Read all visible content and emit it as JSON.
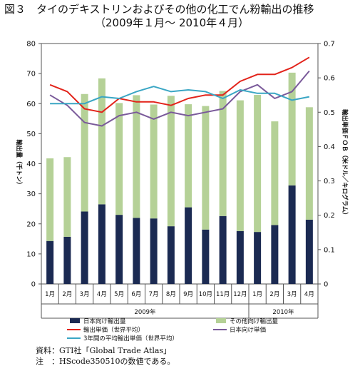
{
  "title": {
    "line1": "図３　タイのデキストリンおよびその他の化工でん粉輸出の推移",
    "line2": "（2009年１月～ 2010年４月）"
  },
  "notes": {
    "source": "資料：GTI社「Global Trade Atlas」",
    "note": "注　：HScode350510の数値である。"
  },
  "chart_data": {
    "type": "bar",
    "categories": [
      "1月",
      "2月",
      "3月",
      "4月",
      "5月",
      "6月",
      "7月",
      "8月",
      "9月",
      "10月",
      "11月",
      "12月",
      "1月",
      "2月",
      "3月",
      "4月"
    ],
    "year_groups": [
      {
        "label": "2009年",
        "from": 0,
        "to": 11
      },
      {
        "label": "2010年",
        "from": 12,
        "to": 15
      }
    ],
    "ylabel_left": "輸出量（千トン）",
    "ylabel_right": "輸出単価ＦＯＢ（米ドル／キログラム）",
    "ylim_left": [
      0,
      80
    ],
    "ylim_right": [
      0,
      0.7
    ],
    "left_ticks": [
      0,
      10,
      20,
      30,
      40,
      50,
      60,
      70,
      80
    ],
    "right_ticks": [
      "0",
      "0.1",
      "0.2",
      "0.3",
      "0.4",
      "0.5",
      "0.6",
      "0.7"
    ],
    "stacked_series": [
      {
        "name": "日本向け輸出量",
        "color": "#1b2a52",
        "values": [
          14.3,
          15.7,
          24.1,
          26.5,
          23.0,
          22.0,
          21.8,
          19.2,
          25.5,
          18.1,
          22.6,
          17.6,
          17.3,
          19.6,
          32.8,
          21.4
        ]
      },
      {
        "name": "その他向け輸出量",
        "color": "#b5d197",
        "values": [
          27.5,
          26.5,
          39.1,
          41.9,
          37.2,
          40.8,
          37.9,
          43.4,
          34.3,
          41.1,
          41.6,
          43.5,
          45.6,
          34.5,
          37.5,
          37.4
        ]
      }
    ],
    "line_series": [
      {
        "name": "輸出単価（世界平均）",
        "color": "#e2231a",
        "values": [
          0.58,
          0.56,
          0.51,
          0.5,
          0.54,
          0.53,
          0.53,
          0.52,
          0.54,
          0.55,
          0.55,
          0.59,
          0.61,
          0.61,
          0.63,
          0.66
        ]
      },
      {
        "name": "日本向け単価",
        "color": "#7a5a9a",
        "values": [
          0.55,
          0.52,
          0.47,
          0.46,
          0.49,
          0.5,
          0.48,
          0.5,
          0.49,
          0.5,
          0.51,
          0.56,
          0.58,
          0.54,
          0.56,
          0.62
        ]
      },
      {
        "name": "3年間の平均輸出単価（世界平均）",
        "color": "#3aa6c4",
        "values": [
          0.525,
          0.525,
          0.525,
          0.545,
          0.54,
          0.56,
          0.575,
          0.56,
          0.565,
          0.56,
          0.54,
          0.565,
          0.555,
          0.555,
          0.535,
          0.545
        ]
      }
    ],
    "legend": [
      {
        "name": "日本向け輸出量",
        "kind": "box",
        "color": "#1b2a52"
      },
      {
        "name": "その他向け輸出量",
        "kind": "box",
        "color": "#b5d197"
      },
      {
        "name": "輸出単価（世界平均）",
        "kind": "line",
        "color": "#e2231a"
      },
      {
        "name": "日本向け単価",
        "kind": "line",
        "color": "#7a5a9a"
      },
      {
        "name": "3年間の平均輸出単価（世界平均）",
        "kind": "line",
        "color": "#3aa6c4"
      }
    ],
    "legend_placement": "bottom",
    "grid": false
  }
}
